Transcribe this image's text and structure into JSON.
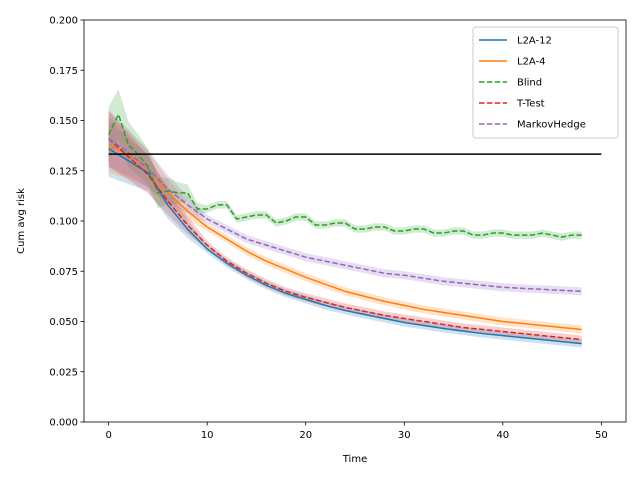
{
  "chart_data": {
    "type": "line",
    "title": "",
    "xlabel": "Time",
    "ylabel": "Cum avg risk",
    "xlim": [
      -2.5,
      52.5
    ],
    "ylim": [
      0.0,
      0.2
    ],
    "xticks": [
      0,
      10,
      20,
      30,
      40,
      50
    ],
    "xtick_labels": [
      "0",
      "10",
      "20",
      "30",
      "40",
      "50"
    ],
    "yticks": [
      0.0,
      0.025,
      0.05,
      0.075,
      0.1,
      0.125,
      0.15,
      0.175,
      0.2
    ],
    "ytick_labels": [
      "0.000",
      "0.025",
      "0.050",
      "0.075",
      "0.100",
      "0.125",
      "0.150",
      "0.175",
      "0.200"
    ],
    "legend_position": "top-right",
    "reference_line": {
      "y": 0.1333,
      "x_range": [
        0,
        50
      ],
      "color": "#000000"
    },
    "series": [
      {
        "name": "L2A-12",
        "color": "#1f77b4",
        "style": "solid",
        "points": [
          [
            0,
            0.136
          ],
          [
            2,
            0.13
          ],
          [
            4,
            0.124
          ],
          [
            6,
            0.108
          ],
          [
            8,
            0.096
          ],
          [
            10,
            0.086
          ],
          [
            12,
            0.079
          ],
          [
            14,
            0.073
          ],
          [
            16,
            0.068
          ],
          [
            18,
            0.064
          ],
          [
            20,
            0.061
          ],
          [
            22,
            0.058
          ],
          [
            24,
            0.0555
          ],
          [
            26,
            0.0535
          ],
          [
            28,
            0.0515
          ],
          [
            30,
            0.0495
          ],
          [
            32,
            0.048
          ],
          [
            34,
            0.0465
          ],
          [
            36,
            0.0452
          ],
          [
            38,
            0.044
          ],
          [
            40,
            0.043
          ],
          [
            42,
            0.042
          ],
          [
            44,
            0.041
          ],
          [
            46,
            0.04
          ],
          [
            48,
            0.039
          ]
        ],
        "band": 0.002
      },
      {
        "name": "L2A-4",
        "color": "#ff7f0e",
        "style": "solid",
        "points": [
          [
            0,
            0.138
          ],
          [
            2,
            0.133
          ],
          [
            4,
            0.126
          ],
          [
            6,
            0.114
          ],
          [
            8,
            0.105
          ],
          [
            10,
            0.097
          ],
          [
            12,
            0.091
          ],
          [
            14,
            0.085
          ],
          [
            16,
            0.08
          ],
          [
            18,
            0.076
          ],
          [
            20,
            0.072
          ],
          [
            22,
            0.0685
          ],
          [
            24,
            0.065
          ],
          [
            26,
            0.0625
          ],
          [
            28,
            0.06
          ],
          [
            30,
            0.058
          ],
          [
            32,
            0.056
          ],
          [
            34,
            0.0545
          ],
          [
            36,
            0.053
          ],
          [
            38,
            0.0515
          ],
          [
            40,
            0.05
          ],
          [
            42,
            0.049
          ],
          [
            44,
            0.048
          ],
          [
            46,
            0.047
          ],
          [
            48,
            0.046
          ]
        ],
        "band": 0.002
      },
      {
        "name": "Blind",
        "color": "#2ca02c",
        "style": "dashed",
        "points": [
          [
            0,
            0.143
          ],
          [
            1,
            0.153
          ],
          [
            2,
            0.138
          ],
          [
            3,
            0.133
          ],
          [
            4,
            0.127
          ],
          [
            5,
            0.114
          ],
          [
            6,
            0.115
          ],
          [
            7,
            0.114
          ],
          [
            8,
            0.114
          ],
          [
            9,
            0.106
          ],
          [
            10,
            0.106
          ],
          [
            11,
            0.108
          ],
          [
            12,
            0.108
          ],
          [
            13,
            0.101
          ],
          [
            14,
            0.102
          ],
          [
            15,
            0.103
          ],
          [
            16,
            0.103
          ],
          [
            17,
            0.099
          ],
          [
            18,
            0.1
          ],
          [
            19,
            0.102
          ],
          [
            20,
            0.102
          ],
          [
            21,
            0.098
          ],
          [
            22,
            0.098
          ],
          [
            23,
            0.099
          ],
          [
            24,
            0.099
          ],
          [
            25,
            0.096
          ],
          [
            26,
            0.096
          ],
          [
            27,
            0.097
          ],
          [
            28,
            0.097
          ],
          [
            29,
            0.095
          ],
          [
            30,
            0.095
          ],
          [
            31,
            0.096
          ],
          [
            32,
            0.096
          ],
          [
            33,
            0.094
          ],
          [
            34,
            0.094
          ],
          [
            35,
            0.095
          ],
          [
            36,
            0.095
          ],
          [
            37,
            0.093
          ],
          [
            38,
            0.093
          ],
          [
            39,
            0.094
          ],
          [
            40,
            0.094
          ],
          [
            41,
            0.093
          ],
          [
            42,
            0.093
          ],
          [
            43,
            0.093
          ],
          [
            44,
            0.094
          ],
          [
            45,
            0.093
          ],
          [
            46,
            0.092
          ],
          [
            47,
            0.093
          ],
          [
            48,
            0.093
          ]
        ],
        "band": 0.0018
      },
      {
        "name": "T-Test",
        "color": "#d62728",
        "style": "dashed",
        "points": [
          [
            0,
            0.141
          ],
          [
            2,
            0.132
          ],
          [
            4,
            0.123
          ],
          [
            6,
            0.11
          ],
          [
            8,
            0.098
          ],
          [
            10,
            0.088
          ],
          [
            12,
            0.08
          ],
          [
            14,
            0.074
          ],
          [
            16,
            0.069
          ],
          [
            18,
            0.065
          ],
          [
            20,
            0.062
          ],
          [
            22,
            0.0595
          ],
          [
            24,
            0.057
          ],
          [
            26,
            0.055
          ],
          [
            28,
            0.053
          ],
          [
            30,
            0.0515
          ],
          [
            32,
            0.05
          ],
          [
            34,
            0.0485
          ],
          [
            36,
            0.047
          ],
          [
            38,
            0.046
          ],
          [
            40,
            0.045
          ],
          [
            42,
            0.044
          ],
          [
            44,
            0.043
          ],
          [
            46,
            0.042
          ],
          [
            48,
            0.041
          ]
        ],
        "band": 0.002
      },
      {
        "name": "MarkovHedge",
        "color": "#9467bd",
        "style": "dashed",
        "points": [
          [
            0,
            0.141
          ],
          [
            2,
            0.134
          ],
          [
            4,
            0.126
          ],
          [
            6,
            0.116
          ],
          [
            8,
            0.108
          ],
          [
            10,
            0.101
          ],
          [
            12,
            0.096
          ],
          [
            14,
            0.091
          ],
          [
            16,
            0.088
          ],
          [
            18,
            0.085
          ],
          [
            20,
            0.082
          ],
          [
            22,
            0.08
          ],
          [
            24,
            0.078
          ],
          [
            26,
            0.076
          ],
          [
            28,
            0.074
          ],
          [
            30,
            0.073
          ],
          [
            32,
            0.0715
          ],
          [
            34,
            0.07
          ],
          [
            36,
            0.069
          ],
          [
            38,
            0.068
          ],
          [
            40,
            0.067
          ],
          [
            42,
            0.0665
          ],
          [
            44,
            0.066
          ],
          [
            46,
            0.0655
          ],
          [
            48,
            0.065
          ]
        ],
        "band": 0.002
      }
    ]
  }
}
